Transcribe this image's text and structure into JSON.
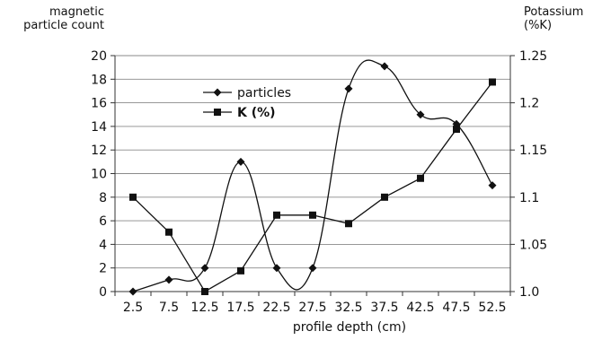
{
  "chart_data": {
    "type": "line",
    "xlabel": "profile depth (cm)",
    "ylabel_left": [
      "magnetic",
      "particle count"
    ],
    "ylabel_right": [
      "Potassium",
      "(%K)"
    ],
    "categories": [
      "2.5",
      "7.5",
      "12.5",
      "17.5",
      "22.5",
      "27.5",
      "32.5",
      "37.5",
      "42.5",
      "47.5",
      "52.5"
    ],
    "ylim_left": [
      0,
      20
    ],
    "yticks_left": [
      "0",
      "2",
      "4",
      "6",
      "8",
      "10",
      "12",
      "14",
      "16",
      "18",
      "20"
    ],
    "ylim_right": [
      1.0,
      1.25
    ],
    "yticks_right": [
      "1.0",
      "1.05",
      "1.1",
      "1.15",
      "1.2",
      "1.25"
    ],
    "grid": true,
    "legend_position": "top-center",
    "series": [
      {
        "name": "particles",
        "axis": "left",
        "marker": "diamond",
        "smooth": true,
        "values": [
          0,
          1,
          2,
          11,
          2,
          2,
          17.2,
          19.1,
          15,
          14.2,
          9
        ]
      },
      {
        "name": "K (%)",
        "axis": "right",
        "marker": "square",
        "smooth": false,
        "values": [
          1.1,
          1.063,
          1.0,
          1.022,
          1.081,
          1.081,
          1.072,
          1.1,
          1.12,
          1.172,
          1.222
        ]
      }
    ]
  }
}
